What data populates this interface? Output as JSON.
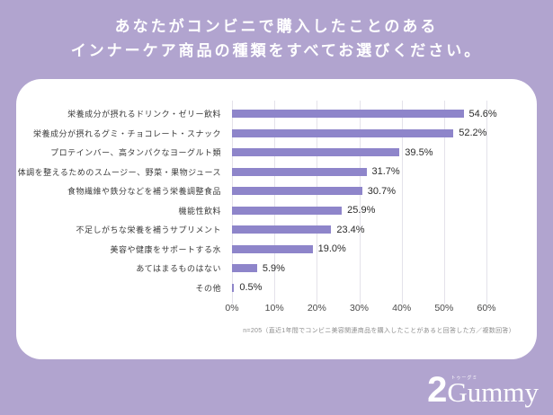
{
  "page": {
    "background_color": "#b1a4cf",
    "title_line1": "あなたがコンビニで購入したことのある",
    "title_line2": "インナーケア商品の種類をすべてお選びください。"
  },
  "chart_data": {
    "type": "bar",
    "orientation": "horizontal",
    "title": "あなたがコンビニで購入したことのあるインナーケア商品の種類をすべてお選びください。",
    "categories": [
      "栄養成分が摂れるドリンク・ゼリー飲料",
      "栄養成分が摂れるグミ・チョコレート・スナック",
      "プロテインバー、高タンパクなヨーグルト類",
      "体調を整えるためのスムージー、野菜・果物ジュース",
      "食物繊維や鉄分などを補う栄養調整食品",
      "機能性飲料",
      "不足しがちな栄養を補うサプリメント",
      "美容や健康をサポートする水",
      "あてはまるものはない",
      "その他"
    ],
    "values": [
      54.6,
      52.2,
      39.5,
      31.7,
      30.7,
      25.9,
      23.4,
      19.0,
      5.9,
      0.5
    ],
    "value_labels": [
      "54.6%",
      "52.2%",
      "39.5%",
      "31.7%",
      "30.7%",
      "25.9%",
      "23.4%",
      "19.0%",
      "5.9%",
      "0.5%"
    ],
    "xlabel": "",
    "ylabel": "",
    "xlim": [
      0,
      60
    ],
    "x_ticks": [
      "0%",
      "10%",
      "20%",
      "30%",
      "40%",
      "50%",
      "60%"
    ],
    "grid": true,
    "bar_color": "#8e85ca",
    "footnote": "n=205（直近1年間でコンビニ美容関連商品を購入したことがあると回答した方／複数回答）"
  },
  "logo": {
    "prefix": "2",
    "name": "Gummy",
    "ruby": "トゥーグミ"
  }
}
